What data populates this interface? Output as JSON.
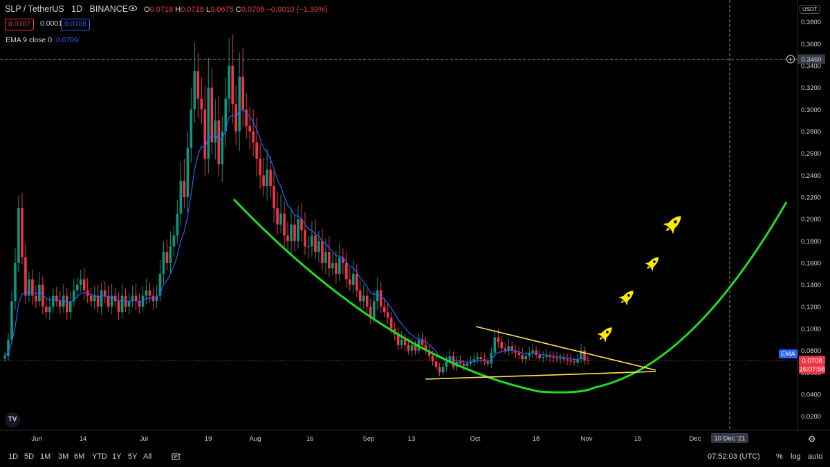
{
  "header": {
    "symbol": "SLP / TetherUS",
    "interval": "1D",
    "exchange": "BINANCE",
    "o_label": "O",
    "o_value": "0.0718",
    "h_label": "H",
    "h_value": "0.0718",
    "l_label": "L",
    "l_value": "0.0675",
    "c_label": "C",
    "c_value": "0.0708",
    "change": "−0.0010 (−1.39%)",
    "bid": "0.0707",
    "spread": "0.0001",
    "ask": "0.0708",
    "ema_label": "EMA 9 close 0",
    "ema_value": "0.0709",
    "currency": "USDT",
    "logo": "TV"
  },
  "colors": {
    "up": "#089981",
    "down": "#f23645",
    "ema": "#2962ff",
    "green_curve": "#1fdf1f",
    "yellow_lines": "#ffe55a",
    "rocket": "#ffeb00"
  },
  "icons": {
    "rocket": "rocket-icon",
    "eye": "eye-icon",
    "plus": "plus-circle-icon",
    "gear": "gear-icon",
    "compare": "compare-icon"
  },
  "chart_data": {
    "type": "candlestick",
    "y_ticks": [
      "0.0200",
      "0.0400",
      "0.0600",
      "0.0800",
      "0.1000",
      "0.1200",
      "0.1400",
      "0.1600",
      "0.1800",
      "0.2000",
      "0.2200",
      "0.2400",
      "0.2600",
      "0.2800",
      "0.3000",
      "0.3200",
      "0.3400",
      "0.3600",
      "0.3800"
    ],
    "ylim": [
      0.0,
      0.395
    ],
    "x_ticks": [
      "Jun",
      "14",
      "Jul",
      "19",
      "Aug",
      "16",
      "Sep",
      "13",
      "Oct",
      "18",
      "Nov",
      "15",
      "Dec"
    ],
    "crosshair_price": "0.3460",
    "crosshair_date": "10 Dec '21",
    "last_price": "0.0708",
    "countdown": "16:07:56",
    "ema_tag": "EMA",
    "close_series": [
      0.075,
      0.09,
      0.125,
      0.16,
      0.21,
      0.165,
      0.13,
      0.145,
      0.13,
      0.125,
      0.14,
      0.12,
      0.115,
      0.12,
      0.13,
      0.125,
      0.12,
      0.13,
      0.115,
      0.125,
      0.135,
      0.14,
      0.145,
      0.135,
      0.13,
      0.125,
      0.13,
      0.12,
      0.135,
      0.13,
      0.12,
      0.13,
      0.125,
      0.115,
      0.13,
      0.12,
      0.125,
      0.13,
      0.125,
      0.12,
      0.13,
      0.135,
      0.13,
      0.125,
      0.13,
      0.15,
      0.17,
      0.16,
      0.175,
      0.185,
      0.205,
      0.235,
      0.22,
      0.265,
      0.3,
      0.335,
      0.31,
      0.3,
      0.255,
      0.32,
      0.27,
      0.29,
      0.25,
      0.28,
      0.31,
      0.34,
      0.305,
      0.28,
      0.33,
      0.3,
      0.285,
      0.28,
      0.27,
      0.255,
      0.24,
      0.23,
      0.245,
      0.23,
      0.21,
      0.195,
      0.205,
      0.185,
      0.18,
      0.195,
      0.18,
      0.2,
      0.19,
      0.175,
      0.175,
      0.185,
      0.17,
      0.18,
      0.16,
      0.17,
      0.155,
      0.16,
      0.15,
      0.165,
      0.16,
      0.145,
      0.14,
      0.15,
      0.135,
      0.125,
      0.13,
      0.12,
      0.11,
      0.125,
      0.135,
      0.12,
      0.115,
      0.11,
      0.1,
      0.095,
      0.085,
      0.09,
      0.085,
      0.08,
      0.085,
      0.08,
      0.09,
      0.085,
      0.08,
      0.075,
      0.07,
      0.065,
      0.06,
      0.065,
      0.07,
      0.075,
      0.065,
      0.07,
      0.068,
      0.066,
      0.068,
      0.07,
      0.072,
      0.074,
      0.072,
      0.07,
      0.068,
      0.078,
      0.092,
      0.088,
      0.082,
      0.08,
      0.084,
      0.08,
      0.078,
      0.076,
      0.072,
      0.075,
      0.078,
      0.08,
      0.076,
      0.073,
      0.074,
      0.075,
      0.074,
      0.073,
      0.072,
      0.073,
      0.072,
      0.071,
      0.07,
      0.069,
      0.072,
      0.08,
      0.071,
      0.0708
    ],
    "ema_period": 9,
    "annotations": [
      {
        "type": "curve",
        "color": "#1fdf1f",
        "desc": "rounding bottom"
      },
      {
        "type": "trendline",
        "color": "#ffe55a",
        "desc": "descending top"
      },
      {
        "type": "trendline",
        "color": "#ffe55a",
        "desc": "rising support"
      },
      {
        "type": "rocket",
        "count": 4
      }
    ]
  },
  "bottombar": {
    "timeframes": [
      "1D",
      "5D",
      "1M",
      "3M",
      "6M",
      "YTD",
      "1Y",
      "5Y",
      "All"
    ],
    "clock": "07:52:03 (UTC)",
    "percent": "%",
    "log": "log",
    "auto": "auto"
  }
}
